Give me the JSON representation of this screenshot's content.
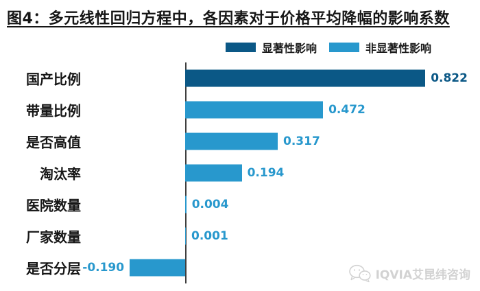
{
  "title": "图4：多元线性回归方程中，各因素对于价格平均降幅的影响系数",
  "legend": [
    {
      "label": "显著性影响",
      "color": "#0b5886"
    },
    {
      "label": "非显著性影响",
      "color": "#2898cd"
    }
  ],
  "colors": {
    "significant": "#0b5886",
    "non_significant": "#2898cd",
    "axis": "#3f3f3f",
    "watermark": "#d2d2d2"
  },
  "watermark": {
    "icon": "wechat-logo-icon",
    "text": "IQVIA艾昆纬咨询"
  },
  "chart_data": {
    "type": "bar",
    "orientation": "horizontal",
    "title": "图4：多元线性回归方程中，各因素对于价格平均降幅的影响系数",
    "xlabel": "",
    "ylabel": "",
    "xlim": [
      -0.25,
      0.95
    ],
    "grid": false,
    "legend_position": "top",
    "categories": [
      "国产比例",
      "带量比例",
      "是否高值",
      "淘汰率",
      "医院数量",
      "厂家数量",
      "是否分层"
    ],
    "values": [
      0.822,
      0.472,
      0.317,
      0.194,
      0.004,
      0.001,
      -0.19
    ],
    "value_labels": [
      "0.822",
      "0.472",
      "0.317",
      "0.194",
      "0.004",
      "0.001",
      "-0.190"
    ],
    "series_membership": [
      "显著性影响",
      "非显著性影响",
      "非显著性影响",
      "非显著性影响",
      "非显著性影响",
      "非显著性影响",
      "非显著性影响"
    ],
    "significant": [
      true,
      false,
      false,
      false,
      false,
      false,
      false
    ]
  }
}
